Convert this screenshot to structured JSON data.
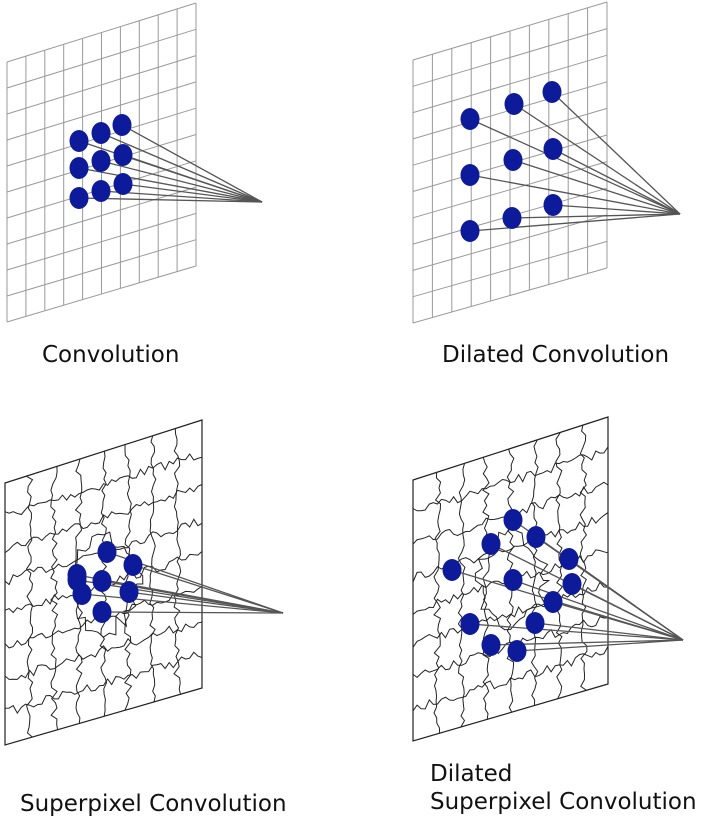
{
  "colors": {
    "node": "#0d1b9a",
    "grid": "#9a9a9a",
    "superpixel_boundary": "#222222",
    "connection": "#555555"
  },
  "panels": [
    {
      "id": "convolution",
      "caption": "Convolution",
      "node_count": 9
    },
    {
      "id": "dilated-convolution",
      "caption": "Dilated Convolution",
      "node_count": 9
    },
    {
      "id": "superpixel-convolution",
      "caption": "Superpixel Convolution",
      "node_count": 8
    },
    {
      "id": "dilated-superpixel-convolution",
      "caption_line1": "Dilated",
      "caption_line2": "Superpixel Convolution",
      "node_count": 12
    }
  ]
}
